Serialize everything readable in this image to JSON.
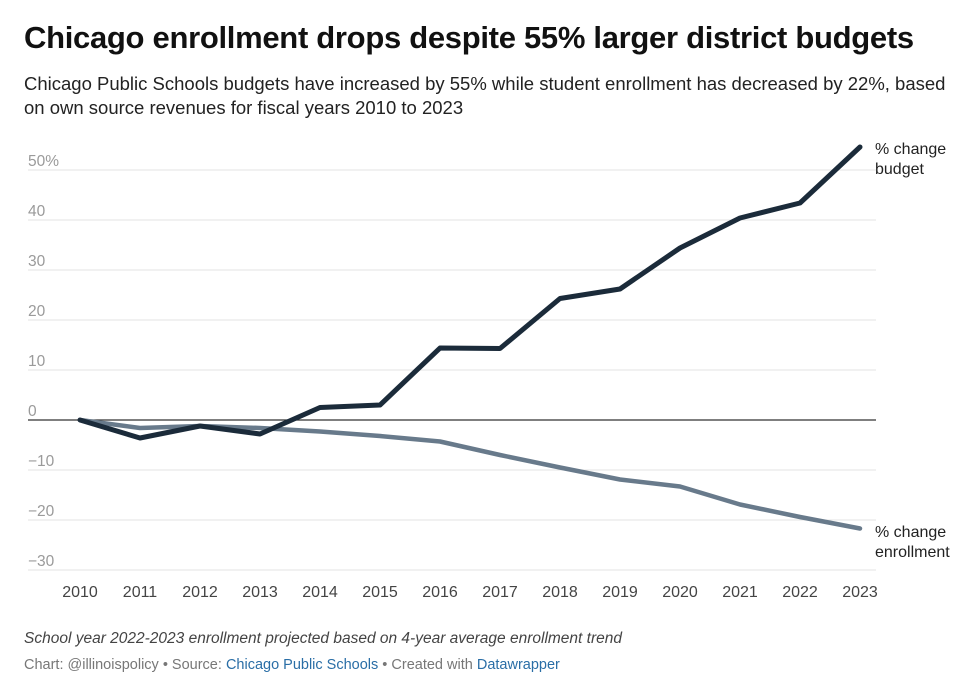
{
  "chart_data": {
    "type": "line",
    "title": "Chicago enrollment drops despite 55% larger district budgets",
    "subtitle": "Chicago Public Schools budgets have increased by 55% while student enrollment has decreased by 22%, based on own source revenues for fiscal years 2010 to 2023",
    "x": [
      2010,
      2011,
      2012,
      2013,
      2014,
      2015,
      2016,
      2017,
      2018,
      2019,
      2020,
      2021,
      2022,
      2023
    ],
    "xticks": [
      "2010",
      "2011",
      "2012",
      "2013",
      "2014",
      "2015",
      "2016",
      "2017",
      "2018",
      "2019",
      "2020",
      "2021",
      "2022",
      "2023"
    ],
    "ylim": [
      -30,
      55
    ],
    "yticks": [
      -30,
      -20,
      -10,
      0,
      10,
      20,
      30,
      40,
      50
    ],
    "ytick_labels": [
      "−30",
      "−20",
      "−10",
      "0",
      "10",
      "20",
      "30",
      "40",
      "50%"
    ],
    "grid": true,
    "series": [
      {
        "name": "% change budget",
        "label_lines": [
          "% change",
          "budget"
        ],
        "color": "#1b2b3a",
        "values": [
          0,
          -3.6,
          -1.2,
          -2.8,
          2.5,
          3.0,
          14.4,
          14.3,
          24.3,
          26.2,
          34.4,
          40.4,
          43.4,
          54.6
        ]
      },
      {
        "name": "% change enrollment",
        "label_lines": [
          "% change",
          "enrollment"
        ],
        "color": "#687a8b",
        "values": [
          0,
          -1.6,
          -1.2,
          -1.6,
          -2.3,
          -3.2,
          -4.3,
          -7.0,
          -9.5,
          -11.9,
          -13.3,
          -16.9,
          -19.4,
          -21.7
        ]
      }
    ]
  },
  "notes": "School year 2022-2023 enrollment projected based on 4-year average enrollment trend",
  "credits": {
    "chart_prefix": "Chart: @illinoispolicy • Source: ",
    "source_name": "Chicago Public Schools",
    "mid": " • Created with ",
    "tool_name": "Datawrapper"
  }
}
